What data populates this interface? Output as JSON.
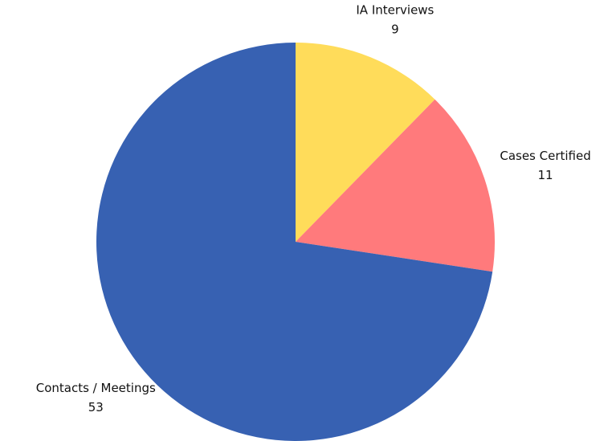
{
  "chart_data": {
    "type": "pie",
    "categories": [
      "IA Interviews",
      "Cases Certified",
      "Contacts / Meetings"
    ],
    "values": [
      9,
      11,
      53
    ],
    "colors": [
      "#FFDC5A",
      "#FF7A7C",
      "#3761B2"
    ]
  }
}
